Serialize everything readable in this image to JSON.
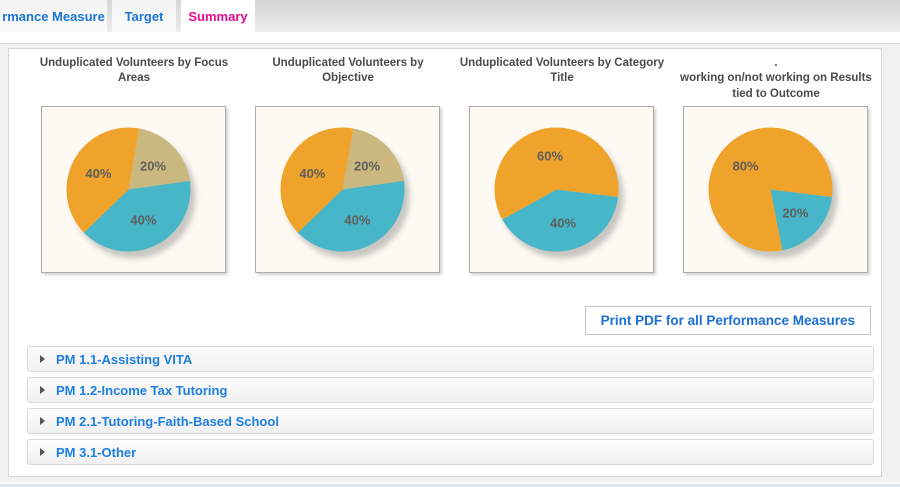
{
  "tabs": [
    {
      "label": "rmance Measure",
      "active": false
    },
    {
      "label": "Target",
      "active": false
    },
    {
      "label": "Summary",
      "active": true
    }
  ],
  "colors": {
    "tab_link_blue": "#1B75D8",
    "active_tab_pink": "#E60A8D",
    "pie_orange": "#F0A32B",
    "pie_tan": "#CBB87E",
    "pie_teal": "#47B6C8",
    "link_blue": "#1E7FE0"
  },
  "charts": [
    {
      "type": "pie",
      "title": "Unduplicated Volunteers by Focus\nAreas",
      "start_angle": 10,
      "slices": [
        {
          "label": "20%",
          "pct": 20,
          "color": "#CBB87E",
          "color_name": "tan"
        },
        {
          "label": "40%",
          "pct": 40,
          "color": "#47B6C8",
          "color_name": "teal"
        },
        {
          "label": "40%",
          "pct": 40,
          "color": "#F0A32B",
          "color_name": "orange"
        }
      ]
    },
    {
      "type": "pie",
      "title": "Unduplicated Volunteers by\nObjective",
      "start_angle": 10,
      "slices": [
        {
          "label": "20%",
          "pct": 20,
          "color": "#CBB87E",
          "color_name": "tan"
        },
        {
          "label": "40%",
          "pct": 40,
          "color": "#47B6C8",
          "color_name": "teal"
        },
        {
          "label": "40%",
          "pct": 40,
          "color": "#F0A32B",
          "color_name": "orange"
        }
      ]
    },
    {
      "type": "pie",
      "title": "Unduplicated Volunteers by Category\nTitle",
      "start_angle": 97,
      "slices": [
        {
          "label": "40%",
          "pct": 40,
          "color": "#47B6C8",
          "color_name": "teal"
        },
        {
          "label": "60%",
          "pct": 60,
          "color": "#F0A32B",
          "color_name": "orange"
        }
      ]
    },
    {
      "type": "pie",
      "title": ".\nworking on/not working on Results\ntied to Outcome",
      "start_angle": 97,
      "slices": [
        {
          "label": "20%",
          "pct": 20,
          "color": "#47B6C8",
          "color_name": "teal"
        },
        {
          "label": "80%",
          "pct": 80,
          "color": "#F0A32B",
          "color_name": "orange"
        }
      ]
    }
  ],
  "print_button": {
    "label": "Print PDF for all Performance Measures"
  },
  "accordion": [
    {
      "label": "PM 1.1-Assisting VITA"
    },
    {
      "label": "PM 1.2-Income Tax Tutoring"
    },
    {
      "label": "PM 2.1-Tutoring-Faith-Based School"
    },
    {
      "label": "PM 3.1-Other"
    }
  ]
}
